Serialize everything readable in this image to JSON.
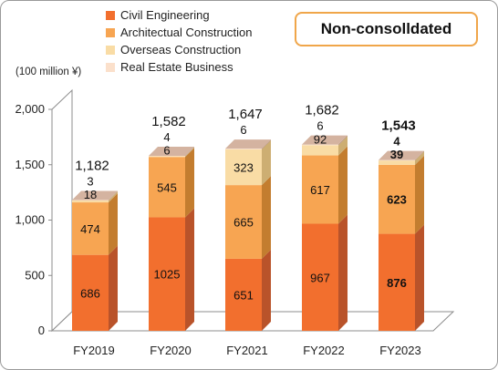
{
  "badge": {
    "label": "Non-consolldated"
  },
  "unit_label": "(100 million ¥)",
  "legend": [
    {
      "label": "Civil Engineering",
      "color": "#f26f2e"
    },
    {
      "label": "Architectual Construction",
      "color": "#f7a552"
    },
    {
      "label": "Overseas Construction",
      "color": "#f9dca5"
    },
    {
      "label": "Real Estate Business",
      "color": "#fbe0cb"
    }
  ],
  "chart_data": {
    "type": "bar",
    "stacked": true,
    "categories": [
      "FY2019",
      "FY2020",
      "FY2021",
      "FY2022",
      "FY2023"
    ],
    "series": [
      {
        "name": "Civil Engineering",
        "values": [
          686,
          1025,
          651,
          967,
          876
        ],
        "color": "#f26f2e",
        "side_color": "#b9532a",
        "top_color": "#f79a6c"
      },
      {
        "name": "Architectual Construction",
        "values": [
          474,
          545,
          665,
          617,
          623
        ],
        "color": "#f7a552",
        "side_color": "#c37d2f",
        "top_color": "#fac489"
      },
      {
        "name": "Overseas Construction",
        "values": [
          18,
          6,
          323,
          92,
          39
        ],
        "color": "#f9dca5",
        "side_color": "#cdae72",
        "top_color": "#fbe9c6"
      },
      {
        "name": "Real Estate Business",
        "values": [
          3,
          4,
          6,
          6,
          4
        ],
        "color": "#fbe0cb",
        "side_color": "#a8826b",
        "top_color": "#d4b3a0"
      }
    ],
    "segment_labels": [
      [
        "686",
        "1025",
        "651",
        "967",
        "876"
      ],
      [
        "474",
        "545",
        "665",
        "617",
        "623"
      ],
      [
        "18",
        "6",
        "323",
        "92",
        "39"
      ],
      [
        "3",
        "4",
        "6",
        "6",
        "4"
      ]
    ],
    "totals": [
      "1,182",
      "1,582",
      "1,647",
      "1,682",
      "1,543"
    ],
    "highlight": {
      "index": 4,
      "total_color": "#e8201f",
      "bold": true
    },
    "yticks": [
      "0",
      "500",
      "1,000",
      "1,500",
      "2,000"
    ],
    "ylim": [
      0,
      2000
    ],
    "grid": false,
    "legend_position": "top"
  }
}
